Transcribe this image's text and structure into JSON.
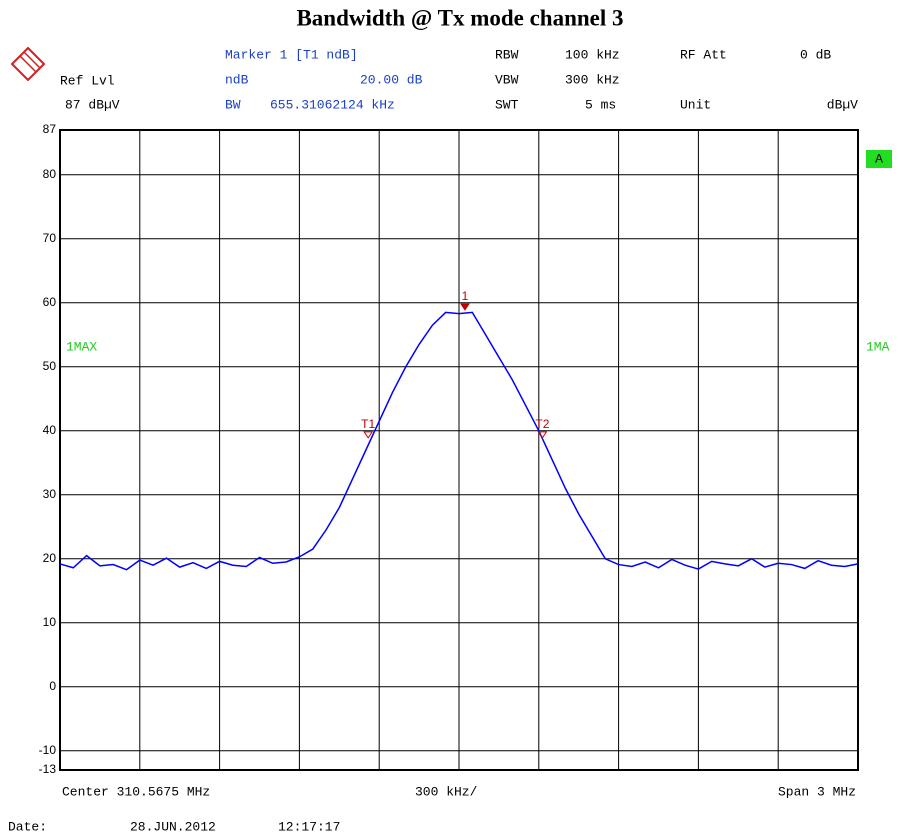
{
  "chart_data": {
    "type": "line",
    "title": "Bandwidth @ Tx mode channel 3",
    "info": {
      "marker": "Marker 1 [T1 ndB]",
      "rbw_label": "RBW",
      "rbw": "100 kHz",
      "att_label": "RF Att",
      "att": "0 dB",
      "ref_label": "Ref Lvl",
      "ndb_label": "ndB",
      "ndb": "20.00 dB",
      "vbw_label": "VBW",
      "vbw": "300 kHz",
      "ref": "87 dBµV",
      "bw_label": "BW",
      "bw": "655.31062124 kHz",
      "swt_label": "SWT",
      "swt": "5 ms",
      "unit_label": "Unit",
      "unit": "dBµV",
      "trace_flag": "A",
      "trace_right": "1MA",
      "center": "Center 310.5675 MHz",
      "div": "300 kHz/",
      "span": "Span 3 MHz",
      "date_label": "Date:",
      "date": "28.JUN.2012",
      "time": "12:17:17"
    },
    "xlim": [
      309.0675,
      312.0675
    ],
    "ylim": [
      -13,
      87
    ],
    "yticks": [
      87,
      80,
      70,
      60,
      50,
      40,
      30,
      20,
      10,
      0,
      -10,
      -13
    ],
    "grid": true,
    "x": [
      309.0675,
      309.1175,
      309.1675,
      309.2175,
      309.2675,
      309.3175,
      309.3675,
      309.4175,
      309.4675,
      309.5175,
      309.5675,
      309.6175,
      309.6675,
      309.7175,
      309.7675,
      309.8175,
      309.8675,
      309.9175,
      309.9675,
      310.0175,
      310.0675,
      310.1175,
      310.1675,
      310.2175,
      310.2675,
      310.3175,
      310.3675,
      310.4175,
      310.4675,
      310.5175,
      310.5675,
      310.6175,
      310.6675,
      310.7175,
      310.7675,
      310.8175,
      310.8675,
      310.9175,
      310.9675,
      311.0175,
      311.0675,
      311.1175,
      311.1675,
      311.2175,
      311.2675,
      311.3175,
      311.3675,
      311.4175,
      311.4675,
      311.5175,
      311.5675,
      311.6175,
      311.6675,
      311.7175,
      311.7675,
      311.8175,
      311.8675,
      311.9175,
      311.9675,
      312.0175,
      312.0675
    ],
    "series": [
      {
        "name": "1MAX",
        "color": "#0000ff",
        "values": [
          19.2,
          18.6,
          20.5,
          18.9,
          19.1,
          18.3,
          19.8,
          19.0,
          20.1,
          18.7,
          19.4,
          18.5,
          19.6,
          19.0,
          18.8,
          20.2,
          19.3,
          19.5,
          20.3,
          21.5,
          24.5,
          28.0,
          32.5,
          37.0,
          41.5,
          46.0,
          50.0,
          53.5,
          56.5,
          58.5,
          58.3,
          58.5,
          55.0,
          51.5,
          48.0,
          44.0,
          40.0,
          35.5,
          31.0,
          27.0,
          23.5,
          20.0,
          19.1,
          18.8,
          19.5,
          18.6,
          19.9,
          19.0,
          18.4,
          19.6,
          19.2,
          18.9,
          20.0,
          18.7,
          19.3,
          19.1,
          18.5,
          19.7,
          19.0,
          18.8,
          19.2
        ]
      }
    ],
    "markers": [
      {
        "label": "1",
        "x": 310.59,
        "y": 58.9,
        "color": "#c00000"
      },
      {
        "label": "T1",
        "x": 310.226,
        "y": 38.9,
        "color": "#c00000"
      },
      {
        "label": "T2",
        "x": 310.881,
        "y": 38.9,
        "color": "#c00000"
      }
    ]
  }
}
